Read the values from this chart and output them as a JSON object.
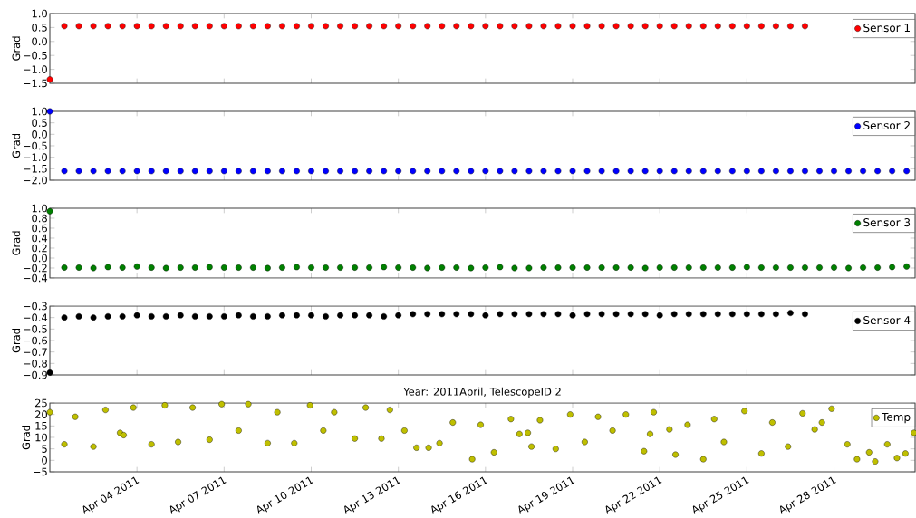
{
  "chart_data": [
    {
      "type": "scatter",
      "ylabel": "Grad",
      "marker": "circle",
      "legend": "top right",
      "tick_labels": "y",
      "xlim": [
        "2011-04-01T00:00",
        "2011-04-30T19:00"
      ],
      "xticks": [
        {
          "value": "2011-04-04",
          "label": null
        },
        {
          "value": "2011-04-07",
          "label": null
        },
        {
          "value": "2011-04-10",
          "label": null
        },
        {
          "value": "2011-04-13",
          "label": null
        },
        {
          "value": "2011-04-16",
          "label": null
        },
        {
          "value": "2011-04-19",
          "label": null
        },
        {
          "value": "2011-04-22",
          "label": null
        },
        {
          "value": "2011-04-25",
          "label": null
        },
        {
          "value": "2011-04-28",
          "label": null
        }
      ],
      "ylim": [
        -1.5,
        1.0
      ],
      "yticks": [
        {
          "value": -1.5,
          "label": "−1.5"
        },
        {
          "value": -1.0,
          "label": "−1.0"
        },
        {
          "value": -0.5,
          "label": "−0.5"
        },
        {
          "value": 0,
          "label": "0.0"
        },
        {
          "value": 0.5,
          "label": "0.5"
        },
        {
          "value": 1.0,
          "label": "1.0"
        }
      ],
      "series": [
        {
          "name": "Sensor 1",
          "color": "#ff0000",
          "x": [
            "2011-04-01T00:00",
            "2011-04-01T12:00",
            "2011-04-02",
            "2011-04-02T12:00",
            "2011-04-03",
            "2011-04-03T12:00",
            "2011-04-04",
            "2011-04-04T12:00",
            "2011-04-05",
            "2011-04-05T12:00",
            "2011-04-06",
            "2011-04-06T12:00",
            "2011-04-07",
            "2011-04-07T12:00",
            "2011-04-08",
            "2011-04-08T12:00",
            "2011-04-09",
            "2011-04-09T12:00",
            "2011-04-10",
            "2011-04-10T12:00",
            "2011-04-11",
            "2011-04-11T12:00",
            "2011-04-12",
            "2011-04-12T12:00",
            "2011-04-13",
            "2011-04-13T12:00",
            "2011-04-14",
            "2011-04-14T12:00",
            "2011-04-15",
            "2011-04-15T12:00",
            "2011-04-16",
            "2011-04-16T12:00",
            "2011-04-17",
            "2011-04-17T12:00",
            "2011-04-18",
            "2011-04-18T12:00",
            "2011-04-19",
            "2011-04-19T12:00",
            "2011-04-20",
            "2011-04-20T12:00",
            "2011-04-21",
            "2011-04-21T12:00",
            "2011-04-22",
            "2011-04-22T12:00",
            "2011-04-23",
            "2011-04-23T12:00",
            "2011-04-24",
            "2011-04-24T12:00",
            "2011-04-25",
            "2011-04-25T12:00",
            "2011-04-26",
            "2011-04-26T12:00",
            "2011-04-27"
          ],
          "values": [
            -1.36,
            0.55,
            0.55,
            0.55,
            0.55,
            0.55,
            0.55,
            0.55,
            0.55,
            0.55,
            0.55,
            0.55,
            0.55,
            0.55,
            0.55,
            0.55,
            0.55,
            0.55,
            0.55,
            0.55,
            0.55,
            0.55,
            0.55,
            0.55,
            0.55,
            0.55,
            0.55,
            0.55,
            0.55,
            0.55,
            0.55,
            0.55,
            0.55,
            0.55,
            0.55,
            0.55,
            0.55,
            0.55,
            0.55,
            0.55,
            0.55,
            0.55,
            0.55,
            0.55,
            0.55,
            0.55,
            0.55,
            0.55,
            0.55,
            0.55,
            0.55,
            0.55,
            0.55
          ]
        }
      ]
    },
    {
      "type": "scatter",
      "ylabel": "Grad",
      "marker": "circle",
      "legend": "top right",
      "tick_labels": "y",
      "xlim": [
        "2011-04-01T00:00",
        "2011-04-30T19:00"
      ],
      "xticks": [
        {
          "value": "2011-04-04",
          "label": null
        },
        {
          "value": "2011-04-07",
          "label": null
        },
        {
          "value": "2011-04-10",
          "label": null
        },
        {
          "value": "2011-04-13",
          "label": null
        },
        {
          "value": "2011-04-16",
          "label": null
        },
        {
          "value": "2011-04-19",
          "label": null
        },
        {
          "value": "2011-04-22",
          "label": null
        },
        {
          "value": "2011-04-25",
          "label": null
        },
        {
          "value": "2011-04-28",
          "label": null
        }
      ],
      "ylim": [
        -2.0,
        1.0
      ],
      "yticks": [
        {
          "value": -2.0,
          "label": "−2.0"
        },
        {
          "value": -1.5,
          "label": "−1.5"
        },
        {
          "value": -1.0,
          "label": "−1.0"
        },
        {
          "value": -0.5,
          "label": "−0.5"
        },
        {
          "value": 0,
          "label": "0.0"
        },
        {
          "value": 0.5,
          "label": "0.5"
        },
        {
          "value": 1.0,
          "label": "1.0"
        }
      ],
      "series": [
        {
          "name": "Sensor 2",
          "color": "#0000ff",
          "x": [
            "2011-04-01T00:00",
            "2011-04-01T12:00",
            "2011-04-02",
            "2011-04-02T12:00",
            "2011-04-03",
            "2011-04-03T12:00",
            "2011-04-04",
            "2011-04-04T12:00",
            "2011-04-05",
            "2011-04-05T12:00",
            "2011-04-06",
            "2011-04-06T12:00",
            "2011-04-07",
            "2011-04-07T12:00",
            "2011-04-08",
            "2011-04-08T12:00",
            "2011-04-09",
            "2011-04-09T12:00",
            "2011-04-10",
            "2011-04-10T12:00",
            "2011-04-11",
            "2011-04-11T12:00",
            "2011-04-12",
            "2011-04-12T12:00",
            "2011-04-13",
            "2011-04-13T12:00",
            "2011-04-14",
            "2011-04-14T12:00",
            "2011-04-15",
            "2011-04-15T12:00",
            "2011-04-16",
            "2011-04-16T12:00",
            "2011-04-17",
            "2011-04-17T12:00",
            "2011-04-18",
            "2011-04-18T12:00",
            "2011-04-19",
            "2011-04-19T12:00",
            "2011-04-20",
            "2011-04-20T12:00",
            "2011-04-21",
            "2011-04-21T12:00",
            "2011-04-22",
            "2011-04-22T12:00",
            "2011-04-23",
            "2011-04-23T12:00",
            "2011-04-24",
            "2011-04-24T12:00",
            "2011-04-25",
            "2011-04-25T12:00",
            "2011-04-26",
            "2011-04-26T12:00",
            "2011-04-27",
            "2011-04-27T12:00",
            "2011-04-28",
            "2011-04-28T12:00",
            "2011-04-29",
            "2011-04-29T12:00",
            "2011-04-30",
            "2011-04-30T12:00"
          ],
          "values": [
            1.0,
            -1.6,
            -1.6,
            -1.6,
            -1.6,
            -1.6,
            -1.6,
            -1.6,
            -1.6,
            -1.6,
            -1.6,
            -1.6,
            -1.6,
            -1.6,
            -1.6,
            -1.6,
            -1.6,
            -1.6,
            -1.6,
            -1.6,
            -1.6,
            -1.6,
            -1.6,
            -1.6,
            -1.6,
            -1.6,
            -1.6,
            -1.6,
            -1.6,
            -1.6,
            -1.6,
            -1.6,
            -1.6,
            -1.6,
            -1.6,
            -1.6,
            -1.6,
            -1.6,
            -1.6,
            -1.6,
            -1.6,
            -1.6,
            -1.6,
            -1.6,
            -1.6,
            -1.6,
            -1.6,
            -1.6,
            -1.6,
            -1.6,
            -1.6,
            -1.6,
            -1.6,
            -1.6,
            -1.6,
            -1.6,
            -1.6,
            -1.6,
            -1.6,
            -1.6
          ]
        }
      ]
    },
    {
      "type": "scatter",
      "ylabel": "Grad",
      "marker": "circle",
      "legend": "top right",
      "tick_labels": "y",
      "xlim": [
        "2011-04-01T00:00",
        "2011-04-30T19:00"
      ],
      "xticks": [
        {
          "value": "2011-04-04",
          "label": null
        },
        {
          "value": "2011-04-07",
          "label": null
        },
        {
          "value": "2011-04-10",
          "label": null
        },
        {
          "value": "2011-04-13",
          "label": null
        },
        {
          "value": "2011-04-16",
          "label": null
        },
        {
          "value": "2011-04-19",
          "label": null
        },
        {
          "value": "2011-04-22",
          "label": null
        },
        {
          "value": "2011-04-25",
          "label": null
        },
        {
          "value": "2011-04-28",
          "label": null
        }
      ],
      "ylim": [
        -0.4,
        1.0
      ],
      "yticks": [
        {
          "value": -0.4,
          "label": "−0.4"
        },
        {
          "value": -0.2,
          "label": "−0.2"
        },
        {
          "value": 0,
          "label": "0.0"
        },
        {
          "value": 0.2,
          "label": "0.2"
        },
        {
          "value": 0.4,
          "label": "0.4"
        },
        {
          "value": 0.6,
          "label": "0.6"
        },
        {
          "value": 0.8,
          "label": "0.8"
        },
        {
          "value": 1.0,
          "label": "1.0"
        }
      ],
      "series": [
        {
          "name": "Sensor 3",
          "color": "#008000",
          "x": [
            "2011-04-01T00:00",
            "2011-04-01T12:00",
            "2011-04-02",
            "2011-04-02T12:00",
            "2011-04-03",
            "2011-04-03T12:00",
            "2011-04-04",
            "2011-04-04T12:00",
            "2011-04-05",
            "2011-04-05T12:00",
            "2011-04-06",
            "2011-04-06T12:00",
            "2011-04-07",
            "2011-04-07T12:00",
            "2011-04-08",
            "2011-04-08T12:00",
            "2011-04-09",
            "2011-04-09T12:00",
            "2011-04-10",
            "2011-04-10T12:00",
            "2011-04-11",
            "2011-04-11T12:00",
            "2011-04-12",
            "2011-04-12T12:00",
            "2011-04-13",
            "2011-04-13T12:00",
            "2011-04-14",
            "2011-04-14T12:00",
            "2011-04-15",
            "2011-04-15T12:00",
            "2011-04-16",
            "2011-04-16T12:00",
            "2011-04-17",
            "2011-04-17T12:00",
            "2011-04-18",
            "2011-04-18T12:00",
            "2011-04-19",
            "2011-04-19T12:00",
            "2011-04-20",
            "2011-04-20T12:00",
            "2011-04-21",
            "2011-04-21T12:00",
            "2011-04-22",
            "2011-04-22T12:00",
            "2011-04-23",
            "2011-04-23T12:00",
            "2011-04-24",
            "2011-04-24T12:00",
            "2011-04-25",
            "2011-04-25T12:00",
            "2011-04-26",
            "2011-04-26T12:00",
            "2011-04-27",
            "2011-04-27T12:00",
            "2011-04-28",
            "2011-04-28T12:00",
            "2011-04-29",
            "2011-04-29T12:00",
            "2011-04-30",
            "2011-04-30T12:00"
          ],
          "values": [
            0.94,
            -0.19,
            -0.19,
            -0.2,
            -0.18,
            -0.19,
            -0.17,
            -0.19,
            -0.2,
            -0.19,
            -0.19,
            -0.18,
            -0.19,
            -0.19,
            -0.19,
            -0.2,
            -0.19,
            -0.18,
            -0.19,
            -0.19,
            -0.19,
            -0.19,
            -0.19,
            -0.18,
            -0.19,
            -0.19,
            -0.2,
            -0.19,
            -0.19,
            -0.2,
            -0.19,
            -0.18,
            -0.2,
            -0.2,
            -0.19,
            -0.19,
            -0.19,
            -0.19,
            -0.19,
            -0.19,
            -0.19,
            -0.2,
            -0.19,
            -0.19,
            -0.19,
            -0.19,
            -0.19,
            -0.19,
            -0.18,
            -0.19,
            -0.19,
            -0.19,
            -0.19,
            -0.19,
            -0.19,
            -0.2,
            -0.19,
            -0.19,
            -0.18,
            -0.17
          ]
        }
      ]
    },
    {
      "type": "scatter",
      "ylabel": "Grad",
      "marker": "circle",
      "legend": "top right",
      "tick_labels": "y",
      "xlim": [
        "2011-04-01T00:00",
        "2011-04-30T19:00"
      ],
      "xticks": [
        {
          "value": "2011-04-04",
          "label": null
        },
        {
          "value": "2011-04-07",
          "label": null
        },
        {
          "value": "2011-04-10",
          "label": null
        },
        {
          "value": "2011-04-13",
          "label": null
        },
        {
          "value": "2011-04-16",
          "label": null
        },
        {
          "value": "2011-04-19",
          "label": null
        },
        {
          "value": "2011-04-22",
          "label": null
        },
        {
          "value": "2011-04-25",
          "label": null
        },
        {
          "value": "2011-04-28",
          "label": null
        }
      ],
      "ylim": [
        -0.9,
        -0.3
      ],
      "yticks": [
        {
          "value": -0.9,
          "label": "−0.9"
        },
        {
          "value": -0.8,
          "label": "−0.8"
        },
        {
          "value": -0.7,
          "label": "−0.7"
        },
        {
          "value": -0.6,
          "label": "−0.6"
        },
        {
          "value": -0.5,
          "label": "−0.5"
        },
        {
          "value": -0.4,
          "label": "−0.4"
        },
        {
          "value": -0.3,
          "label": "−0.3"
        }
      ],
      "series": [
        {
          "name": "Sensor 4",
          "color": "#000000",
          "x": [
            "2011-04-01T00:00",
            "2011-04-01T12:00",
            "2011-04-02",
            "2011-04-02T12:00",
            "2011-04-03",
            "2011-04-03T12:00",
            "2011-04-04",
            "2011-04-04T12:00",
            "2011-04-05",
            "2011-04-05T12:00",
            "2011-04-06",
            "2011-04-06T12:00",
            "2011-04-07",
            "2011-04-07T12:00",
            "2011-04-08",
            "2011-04-08T12:00",
            "2011-04-09",
            "2011-04-09T12:00",
            "2011-04-10",
            "2011-04-10T12:00",
            "2011-04-11",
            "2011-04-11T12:00",
            "2011-04-12",
            "2011-04-12T12:00",
            "2011-04-13",
            "2011-04-13T12:00",
            "2011-04-14",
            "2011-04-14T12:00",
            "2011-04-15",
            "2011-04-15T12:00",
            "2011-04-16",
            "2011-04-16T12:00",
            "2011-04-17",
            "2011-04-17T12:00",
            "2011-04-18",
            "2011-04-18T12:00",
            "2011-04-19",
            "2011-04-19T12:00",
            "2011-04-20",
            "2011-04-20T12:00",
            "2011-04-21",
            "2011-04-21T12:00",
            "2011-04-22",
            "2011-04-22T12:00",
            "2011-04-23",
            "2011-04-23T12:00",
            "2011-04-24",
            "2011-04-24T12:00",
            "2011-04-25",
            "2011-04-25T12:00",
            "2011-04-26",
            "2011-04-26T12:00",
            "2011-04-27"
          ],
          "values": [
            -0.88,
            -0.4,
            -0.39,
            -0.4,
            -0.39,
            -0.39,
            -0.38,
            -0.39,
            -0.39,
            -0.38,
            -0.39,
            -0.39,
            -0.39,
            -0.38,
            -0.39,
            -0.39,
            -0.38,
            -0.38,
            -0.38,
            -0.39,
            -0.38,
            -0.38,
            -0.38,
            -0.39,
            -0.38,
            -0.37,
            -0.37,
            -0.37,
            -0.37,
            -0.37,
            -0.38,
            -0.37,
            -0.37,
            -0.37,
            -0.37,
            -0.37,
            -0.38,
            -0.37,
            -0.37,
            -0.37,
            -0.37,
            -0.37,
            -0.38,
            -0.37,
            -0.37,
            -0.37,
            -0.37,
            -0.37,
            -0.37,
            -0.37,
            -0.37,
            -0.36,
            -0.37
          ]
        }
      ]
    },
    {
      "type": "scatter",
      "title": "Year: 2011April, TelescopeID 2",
      "ylabel": "Grad",
      "marker": "circle",
      "legend": "top right",
      "xlim": [
        "2011-04-01T00:00",
        "2011-04-30T19:00"
      ],
      "xticks": [
        {
          "value": "2011-04-04",
          "label": "Apr 04 2011"
        },
        {
          "value": "2011-04-07",
          "label": "Apr 07 2011"
        },
        {
          "value": "2011-04-10",
          "label": "Apr 10 2011"
        },
        {
          "value": "2011-04-13",
          "label": "Apr 13 2011"
        },
        {
          "value": "2011-04-16",
          "label": "Apr 16 2011"
        },
        {
          "value": "2011-04-19",
          "label": "Apr 19 2011"
        },
        {
          "value": "2011-04-22",
          "label": "Apr 22 2011"
        },
        {
          "value": "2011-04-25",
          "label": "Apr 25 2011"
        },
        {
          "value": "2011-04-28",
          "label": "Apr 28 2011"
        }
      ],
      "ylim": [
        -5,
        25
      ],
      "yticks": [
        {
          "value": -5,
          "label": "−5"
        },
        0,
        5,
        10,
        15,
        20,
        25
      ],
      "series": [
        {
          "name": "Temp",
          "color": "#bfbf00",
          "x": [
            "2011-04-01T00:00",
            "2011-04-01T12:00",
            "2011-04-01T21:00",
            "2011-04-02T12:00",
            "2011-04-02T22:00",
            "2011-04-03T10:00",
            "2011-04-03T13:00",
            "2011-04-03T21:00",
            "2011-04-04T12:00",
            "2011-04-04T23:00",
            "2011-04-05T10:00",
            "2011-04-05T22:00",
            "2011-04-06T12:00",
            "2011-04-06T22:00",
            "2011-04-07T12:00",
            "2011-04-07T20:00",
            "2011-04-08T12:00",
            "2011-04-08T20:00",
            "2011-04-09T10:00",
            "2011-04-09T23:00",
            "2011-04-10T10:00",
            "2011-04-10T19:00",
            "2011-04-11T12:00",
            "2011-04-11T21:00",
            "2011-04-12T10:00",
            "2011-04-12T17:00",
            "2011-04-13T05:00",
            "2011-04-13T15:00",
            "2011-04-14T01:00",
            "2011-04-14T10:00",
            "2011-04-14T21:00",
            "2011-04-15T13:00",
            "2011-04-15T20:00",
            "2011-04-16T07:00",
            "2011-04-16T21:00",
            "2011-04-17T04:00",
            "2011-04-17T11:00",
            "2011-04-17T14:00",
            "2011-04-17T21:00",
            "2011-04-18T10:00",
            "2011-04-18T22:00",
            "2011-04-19T10:00",
            "2011-04-19T21:00",
            "2011-04-20T09:00",
            "2011-04-20T20:00",
            "2011-04-21T11:00",
            "2011-04-21T16:00",
            "2011-04-21T19:00",
            "2011-04-22T08:00",
            "2011-04-22T13:00",
            "2011-04-22T23:00",
            "2011-04-23T12:00",
            "2011-04-23T21:00",
            "2011-04-24T05:00",
            "2011-04-24T22:00",
            "2011-04-25T12:00",
            "2011-04-25T21:00",
            "2011-04-26T10:00",
            "2011-04-26T22:00",
            "2011-04-27T08:00",
            "2011-04-27T14:00",
            "2011-04-27T22:00",
            "2011-04-28T11:00",
            "2011-04-28T19:00",
            "2011-04-29T05:00",
            "2011-04-29T10:00",
            "2011-04-29T20:00",
            "2011-04-30T04:00",
            "2011-04-30T11:00",
            "2011-04-30T18:00"
          ],
          "values": [
            21,
            7,
            19,
            6,
            22,
            12,
            11,
            23,
            7,
            24,
            8,
            23,
            9,
            24.5,
            13,
            24.5,
            7.5,
            21,
            7.5,
            24,
            13,
            21,
            9.5,
            23,
            9.5,
            22,
            13,
            5.5,
            5.5,
            7.5,
            16.5,
            0.5,
            15.5,
            3.5,
            18,
            11.5,
            12,
            6,
            17.5,
            5,
            20,
            8,
            19,
            13,
            20,
            4,
            11.5,
            21,
            13.5,
            2.5,
            15.5,
            0.5,
            18,
            8,
            21.5,
            3,
            16.5,
            6,
            20.5,
            13.5,
            16.5,
            22.5,
            7,
            0.5,
            3.5,
            -0.5,
            7,
            1,
            3,
            12
          ]
        }
      ]
    }
  ]
}
